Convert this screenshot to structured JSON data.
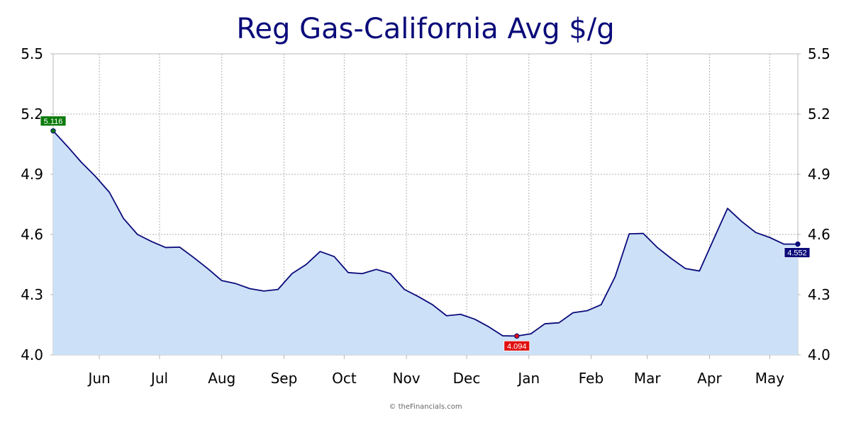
{
  "chart_data": {
    "type": "area",
    "title": "Reg Gas-California Avg $/g",
    "xlabel": "",
    "ylabel": "",
    "ylim": [
      4.0,
      5.5
    ],
    "yticks": [
      "4.0",
      "4.3",
      "4.6",
      "4.9",
      "5.2",
      "5.5"
    ],
    "month_labels": [
      "Jun",
      "Jul",
      "Aug",
      "Sep",
      "Oct",
      "Nov",
      "Dec",
      "Jan",
      "Feb",
      "Mar",
      "Apr",
      "May"
    ],
    "month_starts": [
      "2022-06-01",
      "2022-07-01",
      "2022-08-01",
      "2022-09-01",
      "2022-10-01",
      "2022-11-01",
      "2022-12-01",
      "2023-01-01",
      "2023-02-01",
      "2023-03-01",
      "2023-04-01",
      "2023-05-01"
    ],
    "x_range": [
      "2022-05-09",
      "2023-05-15"
    ],
    "grid": true,
    "colors": {
      "line": "#0a0a7a",
      "fill": "#cce0f7",
      "grid": "#b0b0b0",
      "start_label": "#0a7a0a",
      "min_label": "#e01010",
      "end_label": "#0a0a7a"
    },
    "series": [
      {
        "x": [
          "2022-05-09",
          "2022-05-16",
          "2022-05-23",
          "2022-05-30",
          "2022-06-06",
          "2022-06-13",
          "2022-06-20",
          "2022-06-27",
          "2022-07-04",
          "2022-07-11",
          "2022-07-18",
          "2022-07-25",
          "2022-08-01",
          "2022-08-08",
          "2022-08-15",
          "2022-08-22",
          "2022-08-29",
          "2022-09-05",
          "2022-09-12",
          "2022-09-19",
          "2022-09-26",
          "2022-10-03",
          "2022-10-10",
          "2022-10-17",
          "2022-10-24",
          "2022-10-31",
          "2022-11-07",
          "2022-11-14",
          "2022-11-21",
          "2022-11-28",
          "2022-12-05",
          "2022-12-12",
          "2022-12-19",
          "2022-12-26",
          "2023-01-02",
          "2023-01-09",
          "2023-01-16",
          "2023-01-23",
          "2023-01-30",
          "2023-02-06",
          "2023-02-13",
          "2023-02-20",
          "2023-02-27",
          "2023-03-06",
          "2023-03-13",
          "2023-03-20",
          "2023-03-27",
          "2023-04-03",
          "2023-04-10",
          "2023-04-17",
          "2023-04-24",
          "2023-05-01",
          "2023-05-08",
          "2023-05-15"
        ],
        "values": [
          5.116,
          5.04,
          4.96,
          4.89,
          4.81,
          4.68,
          4.6,
          4.565,
          4.535,
          4.537,
          4.485,
          4.43,
          4.37,
          4.355,
          4.33,
          4.318,
          4.326,
          4.405,
          4.45,
          4.515,
          4.49,
          4.41,
          4.405,
          4.426,
          4.405,
          4.326,
          4.29,
          4.25,
          4.195,
          4.202,
          4.178,
          4.14,
          4.095,
          4.094,
          4.105,
          4.155,
          4.16,
          4.21,
          4.22,
          4.25,
          4.39,
          4.603,
          4.605,
          4.535,
          4.48,
          4.43,
          4.418,
          4.575,
          4.73,
          4.665,
          4.61,
          4.585,
          4.552,
          4.552
        ]
      }
    ],
    "annotations": [
      {
        "role": "start",
        "date": "2022-05-09",
        "value": 5.116,
        "label": "5.116"
      },
      {
        "role": "min",
        "date": "2022-12-26",
        "value": 4.094,
        "label": "4.094"
      },
      {
        "role": "end",
        "date": "2023-05-15",
        "value": 4.552,
        "label": "4.552"
      }
    ]
  },
  "credit": "© theFinancials.com"
}
